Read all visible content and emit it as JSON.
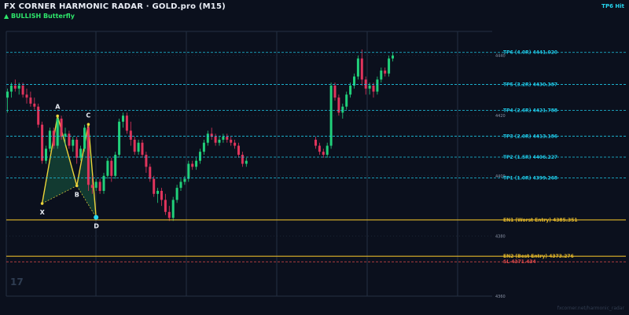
{
  "header": {
    "title": "FX CORNER HARMONIC RADAR  ·  GOLD.pro (M15)",
    "pattern": "▲ BULLISH  Butterfly",
    "hit_badge": "TP6 Hit"
  },
  "watermark": "17",
  "footer_url": "fxcorner.net/harmonic_radar",
  "colors": {
    "background": "#0b101d",
    "bull": "#21d07a",
    "bear": "#e0345c",
    "tp_line": "#1ec8e6",
    "entry_line": "#e3b72a",
    "sl_line": "#e34a4a",
    "pattern_line": "#ecd43a",
    "pattern_fill": "#1f8a5a",
    "d_point": "#27d8f0",
    "grid": "#243043"
  },
  "chart_data": {
    "type": "candlestick",
    "symbol": "GOLD.pro",
    "timeframe": "M15",
    "ylim": [
      4360,
      4448
    ],
    "y_ticks": [
      "4440",
      "4420",
      "4400",
      "4380",
      "4360"
    ],
    "levels": [
      {
        "name": "TP6",
        "label": "TP6 (4.0R)  4441.020",
        "value": 4441.02,
        "kind": "tp"
      },
      {
        "name": "TP5",
        "label": "TP5 (3.2R)  4430.387",
        "value": 4430.387,
        "kind": "tp"
      },
      {
        "name": "TP4",
        "label": "TP4 (2.6R)  4421.788",
        "value": 4421.788,
        "kind": "tp"
      },
      {
        "name": "TP3",
        "label": "TP3 (2.0R)  4413.186",
        "value": 4413.186,
        "kind": "tp"
      },
      {
        "name": "TP2",
        "label": "TP2 (1.5R)  4406.227",
        "value": 4406.227,
        "kind": "tp"
      },
      {
        "name": "TP1",
        "label": "TP1 (1.0R)  4399.268",
        "value": 4399.268,
        "kind": "tp"
      },
      {
        "name": "EN1",
        "label": "EN1 (Worst Entry)  4385.351",
        "value": 4385.351,
        "kind": "entry"
      },
      {
        "name": "EN2",
        "label": "EN2 (Best Entry)  4373.276",
        "value": 4373.276,
        "kind": "entry"
      },
      {
        "name": "SL",
        "label": "SL  4371.434",
        "value": 4371.434,
        "kind": "sl"
      }
    ],
    "pattern_points": [
      {
        "label": "X",
        "bar": 9,
        "value": 4390.8
      },
      {
        "label": "A",
        "bar": 13,
        "value": 4419.9
      },
      {
        "label": "B",
        "bar": 18,
        "value": 4396.7
      },
      {
        "label": "C",
        "bar": 21,
        "value": 4417.1
      },
      {
        "label": "D",
        "bar": 23,
        "value": 4386.2
      }
    ],
    "candles": [
      [
        4426,
        4429,
        4421,
        4428
      ],
      [
        4428,
        4431,
        4426,
        4430
      ],
      [
        4430,
        4432,
        4428,
        4429
      ],
      [
        4429,
        4431,
        4427,
        4430
      ],
      [
        4430,
        4431,
        4426,
        4427
      ],
      [
        4427,
        4429,
        4424,
        4426
      ],
      [
        4426,
        4428,
        4423,
        4424
      ],
      [
        4424,
        4426,
        4422,
        4423
      ],
      [
        4423,
        4424,
        4416,
        4417
      ],
      [
        4417,
        4418,
        4404,
        4405
      ],
      [
        4405,
        4410,
        4404,
        4409
      ],
      [
        4409,
        4416,
        4408,
        4415
      ],
      [
        4415,
        4416,
        4409,
        4410
      ],
      [
        4410,
        4420,
        4409,
        4419
      ],
      [
        4419,
        4420,
        4412,
        4413
      ],
      [
        4413,
        4416,
        4410,
        4414
      ],
      [
        4414,
        4415,
        4409,
        4410
      ],
      [
        4410,
        4413,
        4408,
        4412
      ],
      [
        4412,
        4413,
        4404,
        4406
      ],
      [
        4406,
        4410,
        4405,
        4409
      ],
      [
        4409,
        4417,
        4408,
        4416
      ],
      [
        4416,
        4417,
        4395,
        4397
      ],
      [
        4397,
        4400,
        4394,
        4396
      ],
      [
        4396,
        4399,
        4395,
        4398
      ],
      [
        4398,
        4399,
        4394,
        4395
      ],
      [
        4395,
        4401,
        4394,
        4400
      ],
      [
        4400,
        4406,
        4399,
        4405
      ],
      [
        4405,
        4406,
        4398,
        4400
      ],
      [
        4400,
        4408,
        4399,
        4407
      ],
      [
        4407,
        4419,
        4406,
        4418
      ],
      [
        4418,
        4421,
        4416,
        4420
      ],
      [
        4420,
        4421,
        4414,
        4415
      ],
      [
        4415,
        4418,
        4410,
        4412
      ],
      [
        4412,
        4413,
        4407,
        4408
      ],
      [
        4408,
        4412,
        4407,
        4411
      ],
      [
        4411,
        4412,
        4406,
        4407
      ],
      [
        4407,
        4408,
        4401,
        4403
      ],
      [
        4403,
        4404,
        4398,
        4399
      ],
      [
        4399,
        4400,
        4393,
        4394
      ],
      [
        4394,
        4396,
        4391,
        4395
      ],
      [
        4395,
        4396,
        4390,
        4392
      ],
      [
        4392,
        4394,
        4387,
        4388
      ],
      [
        4388,
        4390,
        4385,
        4386
      ],
      [
        4386,
        4393,
        4385,
        4392
      ],
      [
        4392,
        4397,
        4391,
        4396
      ],
      [
        4396,
        4399,
        4395,
        4398
      ],
      [
        4398,
        4400,
        4397,
        4399
      ],
      [
        4399,
        4405,
        4398,
        4404
      ],
      [
        4404,
        4405,
        4402,
        4403
      ],
      [
        4403,
        4406,
        4402,
        4405
      ],
      [
        4405,
        4409,
        4404,
        4408
      ],
      [
        4408,
        4412,
        4407,
        4411
      ],
      [
        4411,
        4415,
        4410,
        4414
      ],
      [
        4414,
        4416,
        4412,
        4413
      ],
      [
        4413,
        4414,
        4410,
        4411
      ],
      [
        4411,
        4413,
        4410,
        4412
      ],
      [
        4412,
        4414,
        4411,
        4413
      ],
      [
        4413,
        4414,
        4411,
        4412
      ],
      [
        4412,
        4413,
        4410,
        4411
      ],
      [
        4411,
        4412,
        4409,
        4410
      ],
      [
        4410,
        4411,
        4406,
        4407
      ],
      [
        4407,
        4408,
        4403,
        4404
      ],
      [
        4404,
        4406,
        4403,
        4405
      ],
      [
        4412,
        4413,
        4409,
        4410
      ],
      [
        4410,
        4411,
        4407,
        4408
      ],
      [
        4408,
        4409,
        4406,
        4407
      ],
      [
        4407,
        4411,
        4406,
        4410
      ],
      [
        4410,
        4431,
        4409,
        4430
      ],
      [
        4430,
        4431,
        4425,
        4426
      ],
      [
        4426,
        4427,
        4420,
        4421
      ],
      [
        4421,
        4424,
        4419,
        4423
      ],
      [
        4423,
        4428,
        4422,
        4427
      ],
      [
        4427,
        4431,
        4426,
        4430
      ],
      [
        4430,
        4434,
        4429,
        4433
      ],
      [
        4433,
        4440,
        4432,
        4439
      ],
      [
        4439,
        4442,
        4430,
        4432
      ],
      [
        4432,
        4433,
        4427,
        4429
      ],
      [
        4429,
        4431,
        4427,
        4430
      ],
      [
        4430,
        4431,
        4426,
        4428
      ],
      [
        4428,
        4433,
        4427,
        4432
      ],
      [
        4432,
        4436,
        4431,
        4435
      ],
      [
        4435,
        4436,
        4433,
        4434
      ],
      [
        4434,
        4440,
        4433,
        4439
      ],
      [
        4439,
        4441,
        4438,
        4440
      ]
    ],
    "gap_after_bar": 62,
    "gap_bars": 17
  }
}
